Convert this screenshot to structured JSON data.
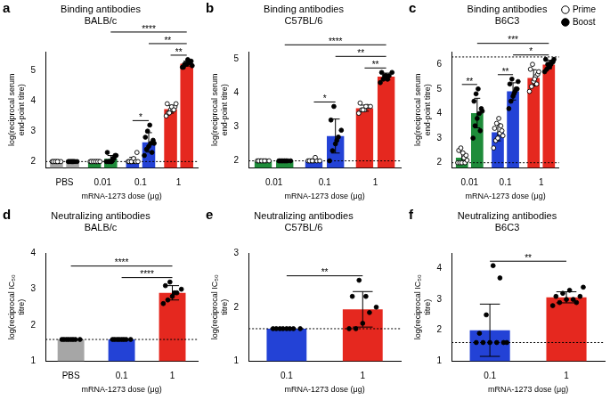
{
  "chart_data": [
    {
      "panel": "a",
      "type": "bar",
      "title": [
        "Binding antibodies",
        "BALB/c"
      ],
      "y_label": [
        "log(reciprocal serum",
        "end-point titre)"
      ],
      "x_label": "mRNA-1273 dose (μg)",
      "categories": [
        "PBS",
        "0.01",
        "0.1",
        "1"
      ],
      "ylim": [
        1.8,
        5.6
      ],
      "yticks": [
        2,
        3,
        4,
        5
      ],
      "grid": false,
      "limit_lines": [
        2
      ],
      "series": [
        {
          "name": "Prime",
          "marker": "open circle",
          "colors": [
            "#a6a6a6",
            "#1e8c3a",
            "#2342d6",
            "#e5281f"
          ],
          "values": [
            2.0,
            2.0,
            2.04,
            3.72
          ],
          "errors": [
            0,
            0,
            0.1,
            0.13
          ],
          "points": [
            [
              2,
              2,
              2,
              2,
              2,
              2,
              2,
              2
            ],
            [
              2,
              2,
              2,
              2,
              2,
              2,
              2,
              2,
              2,
              2
            ],
            [
              2,
              2,
              2,
              2,
              2.3,
              2,
              2,
              2.1,
              2,
              2
            ],
            [
              3.5,
              3.6,
              3.7,
              3.7,
              3.8,
              3.9,
              3.6,
              3.8,
              3.7,
              3.9
            ]
          ]
        },
        {
          "name": "Boost",
          "marker": "circle",
          "colors": [
            "#a6a6a6",
            "#1e8c3a",
            "#2342d6",
            "#e5281f"
          ],
          "values": [
            2.0,
            2.09,
            2.63,
            5.22
          ],
          "errors": [
            0,
            0.11,
            0.32,
            0.08
          ],
          "points": [
            [
              2,
              2,
              2,
              2,
              2,
              2,
              2,
              2
            ],
            [
              2,
              2,
              2,
              2.1,
              2.2,
              2.3,
              2,
              2,
              2.1,
              2.2
            ],
            [
              2.2,
              2.4,
              2.5,
              2.6,
              2.7,
              2.8,
              3.0,
              3.2,
              2.3,
              2.6
            ],
            [
              5.1,
              5.2,
              5.2,
              5.3,
              5.3,
              5.1,
              5.2,
              5.35,
              5.25,
              5.15
            ]
          ]
        }
      ],
      "comparisons": [
        {
          "between": [
            [
              "0.1",
              "Prime"
            ],
            [
              "0.1",
              "Boost"
            ]
          ],
          "label": "*"
        },
        {
          "between": [
            [
              "1",
              "Prime"
            ],
            [
              "1",
              "Boost"
            ]
          ],
          "label": "**"
        },
        {
          "between": [
            [
              "0.1",
              "Boost"
            ],
            [
              "1",
              "Boost"
            ]
          ],
          "label": "**"
        },
        {
          "between": [
            [
              "0.01",
              "Boost"
            ],
            [
              "1",
              "Boost"
            ]
          ],
          "label": "****"
        }
      ]
    },
    {
      "panel": "b",
      "type": "bar",
      "title": [
        "Binding antibodies",
        "C57BL/6"
      ],
      "y_label": [
        "log(reciprocal serum",
        "end-point titre)"
      ],
      "x_label": "mRNA-1273 dose (μg)",
      "categories": [
        "0.01",
        "0.1",
        "1"
      ],
      "ylim": [
        1.8,
        5.2
      ],
      "yticks": [
        2,
        3,
        4,
        5
      ],
      "grid": false,
      "limit_lines": [
        2
      ],
      "series": [
        {
          "name": "Prime",
          "marker": "open circle",
          "colors": [
            "#1e8c3a",
            "#2342d6",
            "#e5281f"
          ],
          "values": [
            2.0,
            2.01,
            3.55
          ],
          "errors": [
            0,
            0.04,
            0.09
          ],
          "points": [
            [
              2,
              2,
              2,
              2,
              2,
              2,
              2,
              2
            ],
            [
              2,
              2,
              2,
              2,
              2,
              2,
              2,
              2.1
            ],
            [
              3.4,
              3.5,
              3.5,
              3.6,
              3.6,
              3.7,
              3.5,
              3.6
            ]
          ]
        },
        {
          "name": "Boost",
          "marker": "circle",
          "colors": [
            "#1e8c3a",
            "#2342d6",
            "#e5281f"
          ],
          "values": [
            2.0,
            2.73,
            4.48
          ],
          "errors": [
            0,
            0.5,
            0.1
          ],
          "points": [
            [
              2,
              2,
              2,
              2,
              2,
              2,
              2,
              2
            ],
            [
              2.0,
              2.3,
              2.5,
              2.7,
              2.9,
              3.2,
              3.6,
              2.6
            ],
            [
              4.3,
              4.4,
              4.5,
              4.5,
              4.6,
              4.6,
              4.5,
              4.4
            ]
          ]
        }
      ],
      "comparisons": [
        {
          "between": [
            [
              "0.1",
              "Prime"
            ],
            [
              "0.1",
              "Boost"
            ]
          ],
          "label": "*"
        },
        {
          "between": [
            [
              "1",
              "Prime"
            ],
            [
              "1",
              "Boost"
            ]
          ],
          "label": "**"
        },
        {
          "between": [
            [
              "0.1",
              "Boost"
            ],
            [
              "1",
              "Boost"
            ]
          ],
          "label": "**"
        },
        {
          "between": [
            [
              "0.01",
              "Boost"
            ],
            [
              "1",
              "Boost"
            ]
          ],
          "label": "****"
        }
      ]
    },
    {
      "panel": "c",
      "type": "bar",
      "title": [
        "Binding antibodies",
        "B6C3"
      ],
      "y_label": [
        "log(reciprocal serum",
        "end-point titre)"
      ],
      "x_label": "mRNA-1273 dose (μg)",
      "categories": [
        "0.01",
        "0.1",
        "1"
      ],
      "ylim": [
        1.8,
        6.5
      ],
      "yticks": [
        2,
        3,
        4,
        5,
        6
      ],
      "grid": false,
      "limit_lines": [
        2,
        6.3
      ],
      "legend": "top right",
      "series": [
        {
          "name": "Prime",
          "marker": "open circle",
          "colors": [
            "#1e8c3a",
            "#2342d6",
            "#e5281f"
          ],
          "values": [
            2.21,
            3.24,
            5.45
          ],
          "errors": [
            0.22,
            0.35,
            0.33
          ],
          "points": [
            [
              2,
              2,
              2,
              2.2,
              2.3,
              2.5,
              2.6,
              2.4,
              2,
              2.1
            ],
            [
              2.6,
              2.9,
              3.0,
              3.2,
              3.3,
              3.4,
              3.6,
              3.8,
              3.5,
              3.1
            ],
            [
              4.9,
              5.1,
              5.3,
              5.5,
              5.6,
              5.8,
              6.0,
              5.4,
              5.2,
              5.7
            ]
          ]
        },
        {
          "name": "Boost",
          "marker": "circle",
          "colors": [
            "#1e8c3a",
            "#2342d6",
            "#e5281f"
          ],
          "values": [
            4.02,
            4.9,
            5.99
          ],
          "errors": [
            0.6,
            0.35,
            0.17
          ],
          "points": [
            [
              3.0,
              3.5,
              3.8,
              4.0,
              4.2,
              4.5,
              4.8,
              5.0,
              3.3,
              4.1
            ],
            [
              4.2,
              4.5,
              4.7,
              4.9,
              5.0,
              5.2,
              5.4,
              4.8,
              5.0,
              5.3
            ],
            [
              5.7,
              5.8,
              5.9,
              6.0,
              6.1,
              6.2,
              6.0,
              5.9,
              6.1,
              6.2
            ]
          ]
        }
      ],
      "comparisons": [
        {
          "between": [
            [
              "0.01",
              "Prime"
            ],
            [
              "0.01",
              "Boost"
            ]
          ],
          "label": "**"
        },
        {
          "between": [
            [
              "0.1",
              "Prime"
            ],
            [
              "0.1",
              "Boost"
            ]
          ],
          "label": "**"
        },
        {
          "between": [
            [
              "0.1",
              "Boost"
            ],
            [
              "1",
              "Boost"
            ]
          ],
          "label": "*"
        },
        {
          "between": [
            [
              "0.01",
              "Boost"
            ],
            [
              "1",
              "Boost"
            ]
          ],
          "label": "***"
        }
      ]
    },
    {
      "panel": "d",
      "type": "bar",
      "title": [
        "Neutralizing antibodies",
        "BALB/c"
      ],
      "y_label": [
        "log(reciprocal IC₅₀",
        "titre)"
      ],
      "x_label": "mRNA-1273 dose (μg)",
      "categories": [
        "PBS",
        "0.1",
        "1"
      ],
      "ylim": [
        1,
        4
      ],
      "yticks": [
        1,
        2,
        3,
        4
      ],
      "grid": false,
      "limit_lines": [
        1.6
      ],
      "marker": "circle",
      "colors": [
        "#a6a6a6",
        "#2342d6",
        "#e5281f"
      ],
      "values": [
        1.6,
        1.6,
        2.9
      ],
      "errors": [
        0,
        0,
        0.2
      ],
      "points": [
        [
          1.6,
          1.6,
          1.6,
          1.6,
          1.6,
          1.6,
          1.6,
          1.6
        ],
        [
          1.6,
          1.6,
          1.6,
          1.6,
          1.6,
          1.6,
          1.6,
          1.6
        ],
        [
          2.6,
          2.7,
          2.8,
          2.9,
          3.0,
          3.1,
          3.2,
          2.9
        ]
      ],
      "comparisons": [
        {
          "between": [
            [
              "0.1"
            ],
            [
              "1"
            ]
          ],
          "label": "****"
        },
        {
          "between": [
            [
              "PBS"
            ],
            [
              "1"
            ]
          ],
          "label": "****"
        }
      ]
    },
    {
      "panel": "e",
      "type": "bar",
      "title": [
        "Neutralizing antibodies",
        "C57BL/6"
      ],
      "y_label": [
        "log(reciprocal IC₅₀",
        "titre)"
      ],
      "x_label": "mRNA-1273 dose (μg)",
      "categories": [
        "0.1",
        "1"
      ],
      "ylim": [
        1,
        3
      ],
      "yticks": [
        1,
        2,
        3
      ],
      "grid": false,
      "limit_lines": [
        1.6
      ],
      "marker": "circle",
      "colors": [
        "#2342d6",
        "#e5281f"
      ],
      "values": [
        1.6,
        1.96
      ],
      "errors": [
        0,
        0.33
      ],
      "points": [
        [
          1.6,
          1.6,
          1.6,
          1.6,
          1.6,
          1.6,
          1.6,
          1.6
        ],
        [
          1.6,
          1.6,
          1.7,
          1.9,
          2.0,
          2.2,
          2.5,
          2.2
        ]
      ],
      "comparisons": [
        {
          "between": [
            [
              "0.1"
            ],
            [
              "1"
            ]
          ],
          "label": "**"
        }
      ]
    },
    {
      "panel": "f",
      "type": "bar",
      "title": [
        "Neutralizing antibodies",
        "B6C3"
      ],
      "y_label": [
        "log(reciprocal IC₅₀",
        "titre)"
      ],
      "x_label": "mRNA-1273 dose (μg)",
      "categories": [
        "0.1",
        "1"
      ],
      "ylim": [
        1,
        4.5
      ],
      "yticks": [
        1,
        2,
        3,
        4
      ],
      "grid": false,
      "limit_lines": [
        1.6
      ],
      "marker": "circle",
      "colors": [
        "#2342d6",
        "#e5281f"
      ],
      "values": [
        2.0,
        3.07
      ],
      "errors": [
        0.85,
        0.18
      ],
      "points": [
        [
          1.6,
          1.6,
          1.6,
          1.6,
          1.6,
          1.9,
          2.5,
          4.1,
          3.7,
          1.6
        ],
        [
          2.8,
          2.9,
          3.0,
          3.0,
          3.1,
          3.1,
          3.2,
          3.3,
          2.9,
          3.4
        ]
      ],
      "comparisons": [
        {
          "between": [
            [
              "0.1"
            ],
            [
              "1"
            ]
          ],
          "label": "**"
        }
      ]
    }
  ]
}
